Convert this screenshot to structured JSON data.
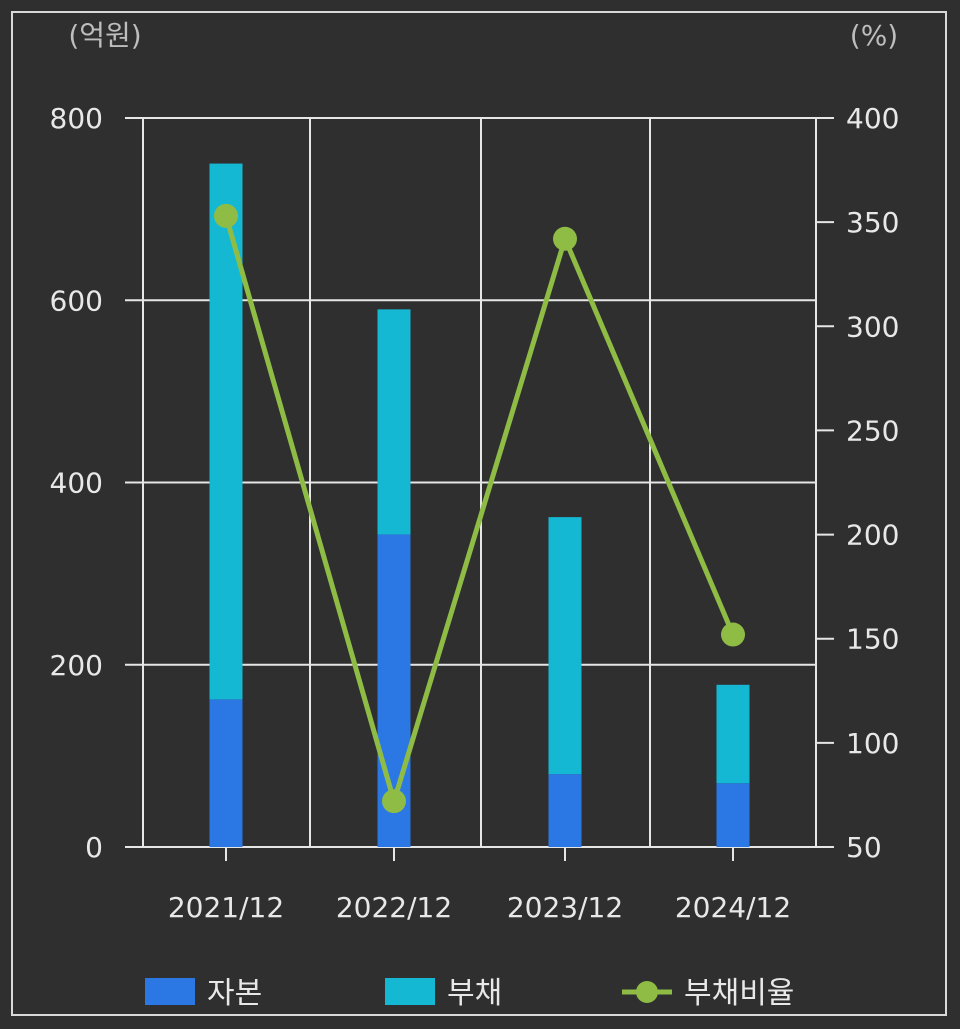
{
  "chart_data": {
    "type": "bar",
    "stacked": true,
    "categories": [
      "2021/12",
      "2022/12",
      "2023/12",
      "2024/12"
    ],
    "series": [
      {
        "name": "자본",
        "axis": "left",
        "values": [
          162,
          343,
          80,
          70
        ],
        "color": "#2b78e4"
      },
      {
        "name": "부채",
        "axis": "left",
        "values": [
          588,
          247,
          282,
          108
        ],
        "color": "#14b8d2"
      },
      {
        "name": "부채비율",
        "axis": "right",
        "type": "line",
        "values": [
          353,
          72,
          342,
          152
        ],
        "color": "#8fbc45"
      }
    ],
    "y_left": {
      "unit_label": "(억원)",
      "min": 0,
      "max": 800,
      "ticks": [
        0,
        200,
        400,
        600,
        800
      ]
    },
    "y_right": {
      "unit_label": "(%)",
      "min": 50,
      "max": 400,
      "ticks": [
        50,
        100,
        150,
        200,
        250,
        300,
        350,
        400
      ]
    },
    "grid": true,
    "legend_position": "bottom"
  }
}
